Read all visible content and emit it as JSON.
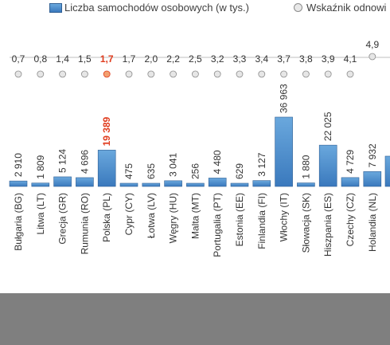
{
  "legend": {
    "bars_label": "Liczba samochodów osobowych (w tys.)",
    "dots_label": "Wskaźnik odnowi"
  },
  "colors": {
    "bar_top": "#6aa8dd",
    "bar_bottom": "#3a79bd",
    "bar_stroke": "#2f5f94",
    "highlight": "#e03c1e",
    "marker_fill": "#e6e6e6",
    "marker_stroke": "#8c8c8c",
    "footer_band": "#7f7f7f"
  },
  "chart_data": {
    "type": "bar",
    "categories": [
      "Bułgaria (BG)",
      "Litwa (LT)",
      "Grecja (GR)",
      "Rumunia (RO)",
      "Polska (PL)",
      "Cypr (CY)",
      "Łotwa (LV)",
      "Węgry (HU)",
      "Malta (MT)",
      "Portugalia (PT)",
      "Estonia (EE)",
      "Finlandia (FI)",
      "Włochy (IT)",
      "Słowacja (SK)",
      "Hiszpania (ES)",
      "Czechy (CZ)",
      "Holandia (NL)"
    ],
    "series": [
      {
        "name": "Liczba samochodów osobowych (w tys.)",
        "type": "bar",
        "values": [
          2910,
          1809,
          5124,
          4696,
          19389,
          475,
          635,
          3041,
          256,
          4480,
          629,
          3127,
          36963,
          1880,
          22025,
          4729,
          7932
        ],
        "labels": [
          "2 910",
          "1 809",
          "5 124",
          "4 696",
          "19 389",
          "475",
          "635",
          "3 041",
          "256",
          "4 480",
          "629",
          "3 127",
          "36 963",
          "1 880",
          "22 025",
          "4 729",
          "7 932"
        ]
      },
      {
        "name": "Wskaźnik odnowi",
        "type": "line-markers",
        "values": [
          0.7,
          0.8,
          1.4,
          1.5,
          1.7,
          1.7,
          2.0,
          2.2,
          2.5,
          3.2,
          3.3,
          3.4,
          3.7,
          3.8,
          3.9,
          4.1,
          4.9
        ],
        "labels": [
          "0,7",
          "0,8",
          "1,4",
          "1,5",
          "1,7",
          "1,7",
          "2,0",
          "2,2",
          "2,5",
          "3,2",
          "3,3",
          "3,4",
          "3,7",
          "3,8",
          "3,9",
          "4,1",
          "4,9"
        ]
      }
    ],
    "highlight_category": "Polska (PL)",
    "grid": false,
    "legend_position": "top"
  }
}
